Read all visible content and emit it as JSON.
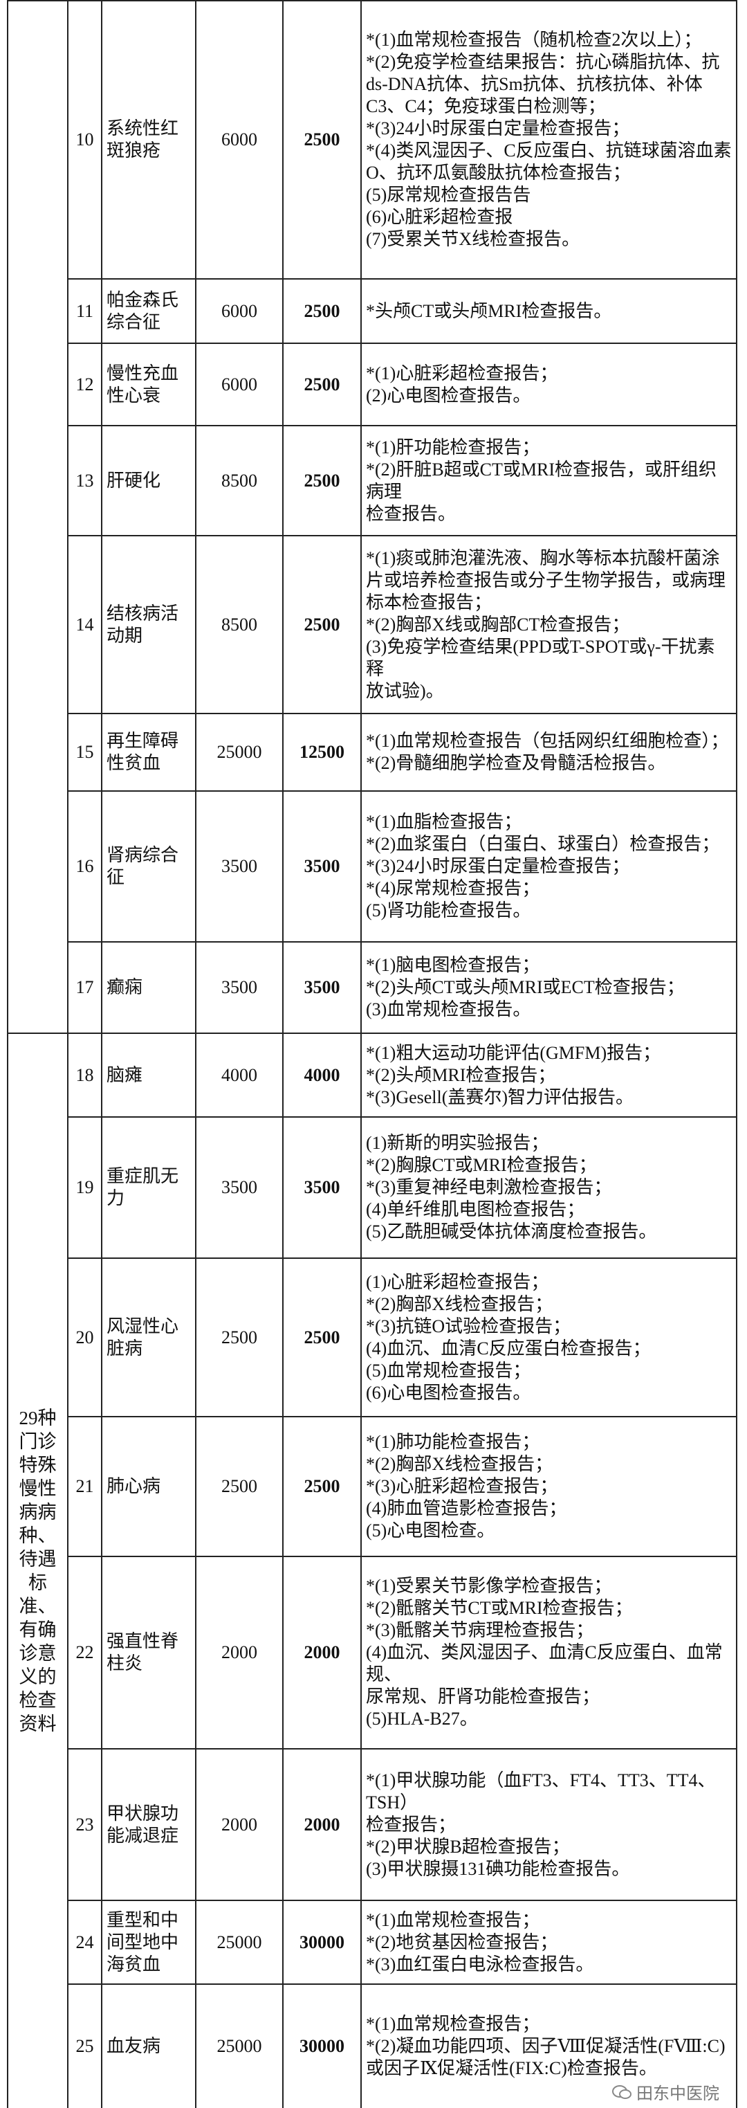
{
  "group_labels": [
    "",
    "29种门诊特殊慢性病病种、待遇标准、有确诊意义的检查资料"
  ],
  "rows": [
    {
      "num": 10,
      "name": "系统性红斑狼疮",
      "limit1": 6000,
      "limit2": 2500,
      "items": [
        "*(1)血常规检查报告（随机检查2次以上）；",
        "*(2)免疫学检查结果报告：抗心磷脂抗体、抗ds-DNA抗体、抗Sm抗体、抗核抗体、补体C3、C4；免疫球蛋白检测等；",
        "*(3)24小时尿蛋白定量检查报告；",
        "*(4)类风湿因子、C反应蛋白、抗链球菌溶血素O、抗环瓜氨酸肽抗体检查报告；",
        "(5)尿常规检查报告告",
        "(6)心脏彩超检查报",
        "(7)受累关节X线检查报告。"
      ]
    },
    {
      "num": 11,
      "name": "帕金森氏综合征",
      "limit1": 6000,
      "limit2": 2500,
      "items": [
        "*头颅CT或头颅MRI检查报告。"
      ]
    },
    {
      "num": 12,
      "name": "慢性充血性心衰",
      "limit1": 6000,
      "limit2": 2500,
      "items": [
        "*(1)心脏彩超检查报告；",
        "(2)心电图检查报告。"
      ]
    },
    {
      "num": 13,
      "name": "肝硬化",
      "limit1": 8500,
      "limit2": 2500,
      "items": [
        "*(1)肝功能检查报告；",
        "*(2)肝脏B超或CT或MRI检查报告，或肝组织病理",
        "检查报告。"
      ]
    },
    {
      "num": 14,
      "name": "结核病活动期",
      "limit1": 8500,
      "limit2": 2500,
      "items": [
        "*(1)痰或肺泡灌洗液、胸水等标本抗酸杆菌涂片或培养检查报告或分子生物学报告，或病理标本检查报告；",
        "*(2)胸部X线或胸部CT检查报告；",
        "(3)免疫学检查结果(PPD或T-SPOT或γ-干扰素释",
        "放试验)。"
      ]
    },
    {
      "num": 15,
      "name": "再生障碍性贫血",
      "limit1": 25000,
      "limit2": 12500,
      "items": [
        "*(1)血常规检查报告（包括网织红细胞检查）；",
        "*(2)骨髓细胞学检查及骨髓活检报告。"
      ]
    },
    {
      "num": 16,
      "name": "肾病综合征",
      "limit1": 3500,
      "limit2": 3500,
      "items": [
        "*(1)血脂检查报告；",
        "*(2)血浆蛋白（白蛋白、球蛋白）检查报告；",
        "*(3)24小时尿蛋白定量检查报告；",
        "*(4)尿常规检查报告；",
        "(5)肾功能检查报告。"
      ]
    },
    {
      "num": 17,
      "name": "癫痫",
      "limit1": 3500,
      "limit2": 3500,
      "items": [
        "*(1)脑电图检查报告；",
        "*(2)头颅CT或头颅MRI或ECT检查报告；",
        "(3)血常规检查报告。"
      ]
    },
    {
      "num": 18,
      "name": "脑瘫",
      "limit1": 4000,
      "limit2": 4000,
      "items": [
        "*(1)粗大运动功能评估(GMFM)报告；",
        "*(2)头颅MRI检查报告；",
        "*(3)Gesell(盖赛尔)智力评估报告。"
      ]
    },
    {
      "num": 19,
      "name": "重症肌无力",
      "limit1": 3500,
      "limit2": 3500,
      "items": [
        "(1)新斯的明实验报告；",
        "*(2)胸腺CT或MRI检查报告；",
        "*(3)重复神经电刺激检查报告；",
        "(4)单纤维肌电图检查报告；",
        "(5)乙酰胆碱受体抗体滴度检查报告。"
      ]
    },
    {
      "num": 20,
      "name": "风湿性心脏病",
      "limit1": 2500,
      "limit2": 2500,
      "items": [
        "(1)心脏彩超检查报告；",
        "*(2)胸部X线检查报告；",
        "*(3)抗链O试验检查报告；",
        "(4)血沉、血清C反应蛋白检查报告；",
        "(5)血常规检查报告；",
        "(6)心电图检查报告。"
      ]
    },
    {
      "num": 21,
      "name": "肺心病",
      "limit1": 2500,
      "limit2": 2500,
      "items": [
        "*(1)肺功能检查报告；",
        "*(2)胸部X线检查报告；",
        "*(3)心脏彩超检查报告；",
        "(4)肺血管造影检查报告；",
        "(5)心电图检查。"
      ]
    },
    {
      "num": 22,
      "name": "强直性脊柱炎",
      "limit1": 2000,
      "limit2": 2000,
      "items": [
        "*(1)受累关节影像学检查报告；",
        "*(2)骶髂关节CT或MRI检查报告；",
        "*(3)骶髂关节病理检查报告；",
        "(4)血沉、类风湿因子、血清C反应蛋白、血常规、",
        "尿常规、肝肾功能检查报告；",
        "(5)HLA-B27。"
      ]
    },
    {
      "num": 23,
      "name": "甲状腺功能减退症",
      "limit1": 2000,
      "limit2": 2000,
      "items": [
        "*(1)甲状腺功能（血FT3、FT4、TT3、TT4、TSH）",
        "检查报告；",
        "*(2)甲状腺B超检查报告；",
        "(3)甲状腺摄131碘功能检查报告。"
      ]
    },
    {
      "num": 24,
      "name": "重型和中间型地中海贫血",
      "limit1": 25000,
      "limit2": 30000,
      "items": [
        "*(1)血常规检查报告；",
        "*(2)地贫基因检查报告；",
        "*(3)血红蛋白电泳检查报告。"
      ]
    },
    {
      "num": 25,
      "name": "血友病",
      "limit1": 25000,
      "limit2": 30000,
      "items": [
        "*(1)血常规检查报告；",
        "*(2)凝血功能四项、因子Ⅷ促凝活性(FⅧ:C)或因子Ⅸ促凝活性(FIX:C)检查报告。"
      ]
    }
  ],
  "watermark": "田东中医院"
}
